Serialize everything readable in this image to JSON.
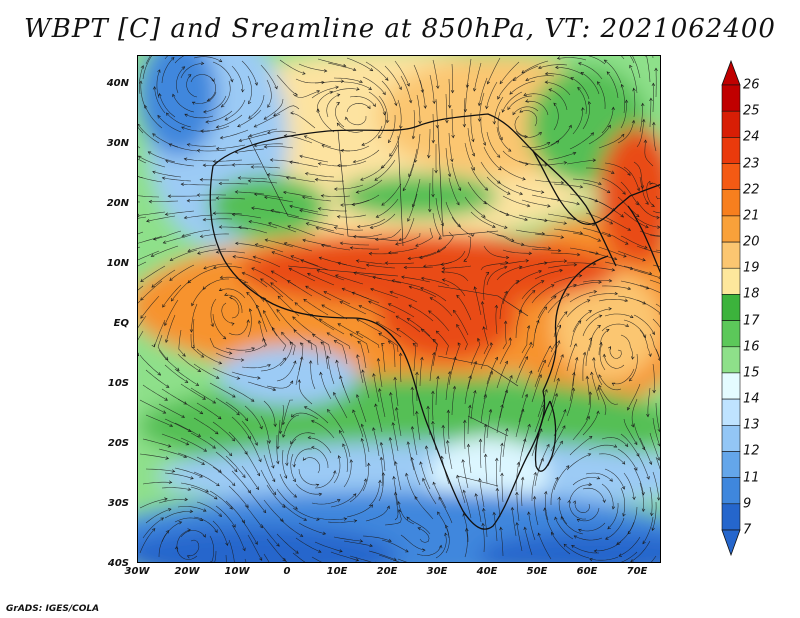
{
  "title": "WBPT [C] and Sreamline at 850hPa, VT: 2021062400",
  "credit": "GrADS: IGES/COLA",
  "map": {
    "lat_labels": [
      "40N",
      "30N",
      "20N",
      "10N",
      "EQ",
      "10S",
      "20S",
      "30S",
      "40S"
    ],
    "lon_labels": [
      "30W",
      "20W",
      "10W",
      "0",
      "10E",
      "20E",
      "30E",
      "40E",
      "50E",
      "60E",
      "70E"
    ],
    "lat_range": [
      -40,
      45
    ],
    "lon_range": [
      -30,
      75
    ]
  },
  "colorbar": {
    "labels": [
      "26",
      "25",
      "24",
      "23",
      "22",
      "21",
      "20",
      "19",
      "18",
      "17",
      "16",
      "15",
      "14",
      "13",
      "12",
      "11",
      "9",
      "7"
    ],
    "colors": [
      "#c00000",
      "#d81e05",
      "#ea3a0c",
      "#f45a14",
      "#f77f1e",
      "#f9a13a",
      "#fbc671",
      "#fde79c",
      "#3cb33c",
      "#5cc85a",
      "#8ee08a",
      "#e4fbff",
      "#bfe3ff",
      "#93c6f5",
      "#64a6ea",
      "#3f87dd",
      "#2566cc"
    ]
  },
  "regions": {
    "colors": {
      "hot": "#e94b18",
      "warm": "#f7932d",
      "mild": "#fbc671",
      "pale": "#fde3a0",
      "green": "#54bf54",
      "lightgreen": "#8ee08a",
      "cyan": "#dcf6ff",
      "lightblue": "#9ccbf5",
      "blue": "#3f87dd",
      "deepblue": "#2566cc"
    }
  }
}
